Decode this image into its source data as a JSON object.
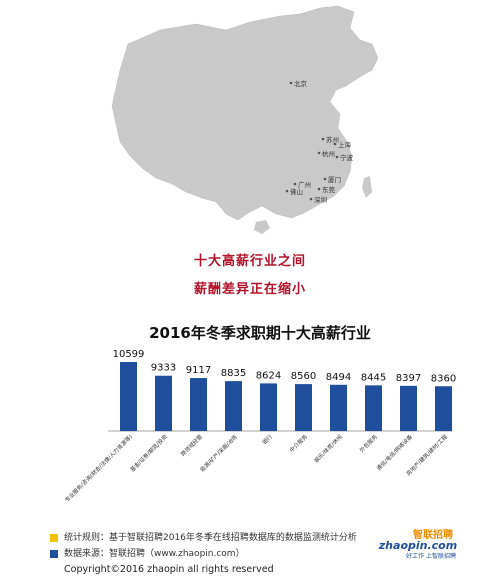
{
  "map": {
    "cities": [
      {
        "name": "北京"
      },
      {
        "name": "苏州"
      },
      {
        "name": "上海"
      },
      {
        "name": "杭州"
      },
      {
        "name": "宁波"
      },
      {
        "name": "厦门"
      },
      {
        "name": "广州"
      },
      {
        "name": "东莞"
      },
      {
        "name": "佛山"
      },
      {
        "name": "深圳"
      }
    ]
  },
  "headline": {
    "line1": "十大高薪行业之间",
    "line2": "薪酬差异正在缩小"
  },
  "chart_data": {
    "type": "bar",
    "title": "2016年冬季求职期十大高薪行业",
    "xlabel": "",
    "ylabel": "",
    "categories": [
      "专业服务/咨询(财会/法律/人力资源等)",
      "基金/证券/期货/投资",
      "跨领域经营",
      "能源/矿产/采掘/冶炼",
      "银行",
      "中介服务",
      "娱乐/体育/休闲",
      "外包服务",
      "通信/电信/网络设备",
      "房地产/建筑/建材/工程"
    ],
    "values": [
      10599,
      9333,
      9117,
      8835,
      8624,
      8560,
      8494,
      8445,
      8397,
      8360
    ],
    "ylim": [
      0,
      11000
    ],
    "grid": false,
    "bar_color": "#1f4e9c"
  },
  "footer": {
    "note1": "统计规则：基于智联招聘2016年冬季在线招聘数据库的数据监测统计分析",
    "note2": "数据来源：智联招聘（www.zhaopin.com）",
    "note1_color": "#f2c200",
    "note2_color": "#1f4e9c",
    "copyright": "Copyright©2016 zhaopin all rights reserved",
    "logo_cn": "智联招聘",
    "logo_en": "zhaopin.com",
    "logo_slogan": "好工作 上智联招聘"
  }
}
